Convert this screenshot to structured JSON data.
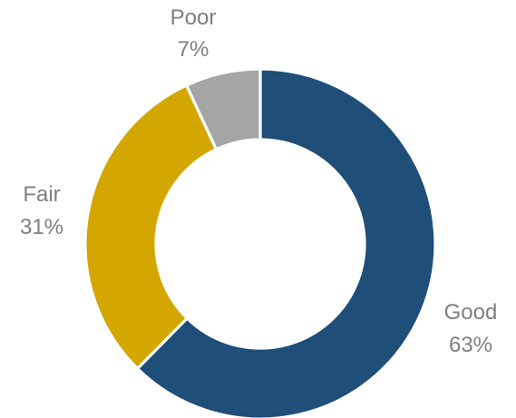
{
  "chart_data": {
    "type": "pie",
    "donut": true,
    "categories": [
      "Good",
      "Fair",
      "Poor"
    ],
    "values": [
      63,
      31,
      7
    ],
    "value_labels": [
      "63%",
      "31%",
      "7%"
    ],
    "colors": [
      "#1f4e79",
      "#d4a600",
      "#a5a5a5"
    ],
    "label_color": "#7f7f7f",
    "title": "",
    "legend": "none",
    "start_angle_deg": 0,
    "direction": "clockwise"
  }
}
